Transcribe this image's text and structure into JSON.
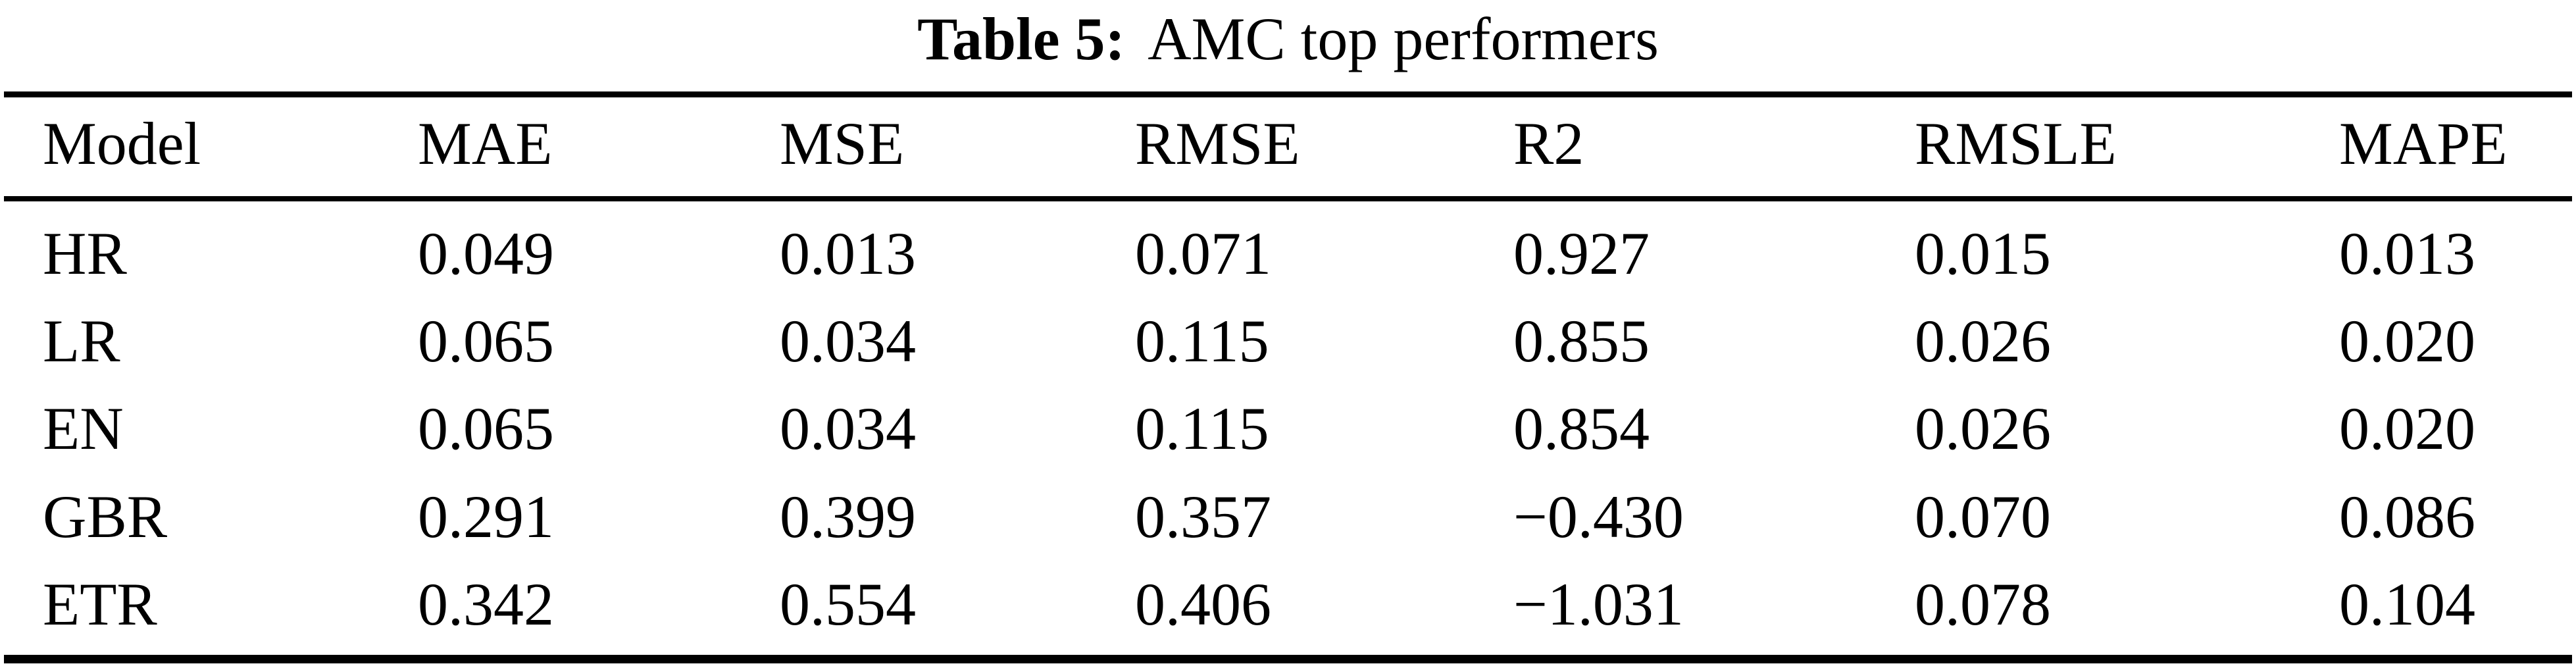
{
  "caption": {
    "label": "Table 5:",
    "text": "AMC top performers"
  },
  "columns": [
    "Model",
    "MAE",
    "MSE",
    "RMSE",
    "R2",
    "RMSLE",
    "MAPE"
  ],
  "rows": [
    {
      "model": "HR",
      "values": [
        "0.049",
        "0.013",
        "0.071",
        "0.927",
        "0.015",
        "0.013"
      ]
    },
    {
      "model": "LR",
      "values": [
        "0.065",
        "0.034",
        "0.115",
        "0.855",
        "0.026",
        "0.020"
      ]
    },
    {
      "model": "EN",
      "values": [
        "0.065",
        "0.034",
        "0.115",
        "0.854",
        "0.026",
        "0.020"
      ]
    },
    {
      "model": "GBR",
      "values": [
        "0.291",
        "0.399",
        "0.357",
        "−0.430",
        "0.070",
        "0.086"
      ]
    },
    {
      "model": "ETR",
      "values": [
        "0.342",
        "0.554",
        "0.406",
        "−1.031",
        "0.078",
        "0.104"
      ]
    }
  ],
  "chart_data": {
    "type": "table",
    "title": "Table 5: AMC top performers",
    "columns": [
      "Model",
      "MAE",
      "MSE",
      "RMSE",
      "R2",
      "RMSLE",
      "MAPE"
    ],
    "rows": [
      [
        "HR",
        0.049,
        0.013,
        0.071,
        0.927,
        0.015,
        0.013
      ],
      [
        "LR",
        0.065,
        0.034,
        0.115,
        0.855,
        0.026,
        0.02
      ],
      [
        "EN",
        0.065,
        0.034,
        0.115,
        0.854,
        0.026,
        0.02
      ],
      [
        "GBR",
        0.291,
        0.399,
        0.357,
        -0.43,
        0.07,
        0.086
      ],
      [
        "ETR",
        0.342,
        0.554,
        0.406,
        -1.031,
        0.078,
        0.104
      ]
    ]
  },
  "colors": {
    "background": "#ffffff",
    "text": "#000000",
    "rule": "#000000"
  }
}
